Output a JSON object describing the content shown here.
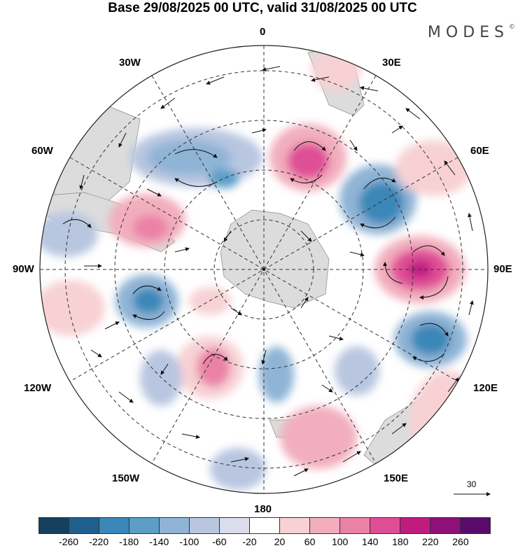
{
  "title": "Base 29/08/2025 00 UTC, valid 31/08/2025 00 UTC",
  "brand": "MODES",
  "brand_mark": "©",
  "longitude_labels": {
    "top": "0",
    "upper_left": "30W",
    "upper_right": "30E",
    "left_upper": "60W",
    "right_upper": "60E",
    "left": "90W",
    "right": "90E",
    "left_lower": "120W",
    "right_lower": "120E",
    "lower_left": "150W",
    "lower_right": "150E",
    "bottom": "180"
  },
  "reference_vector": {
    "value": "30"
  },
  "colorbar": {
    "colors": [
      "#15405e",
      "#1f5f8e",
      "#3b87b8",
      "#5c9ec8",
      "#8fb4d6",
      "#b8c6e0",
      "#dcdcef",
      "#ffffff",
      "#f7d1d4",
      "#f2aebd",
      "#ea82a6",
      "#df4f96",
      "#c01c80",
      "#8e1078",
      "#5a0a6a"
    ],
    "ticks": [
      "-260",
      "-220",
      "-180",
      "-140",
      "-100",
      "-60",
      "-20",
      "20",
      "60",
      "100",
      "140",
      "180",
      "220",
      "260"
    ]
  }
}
